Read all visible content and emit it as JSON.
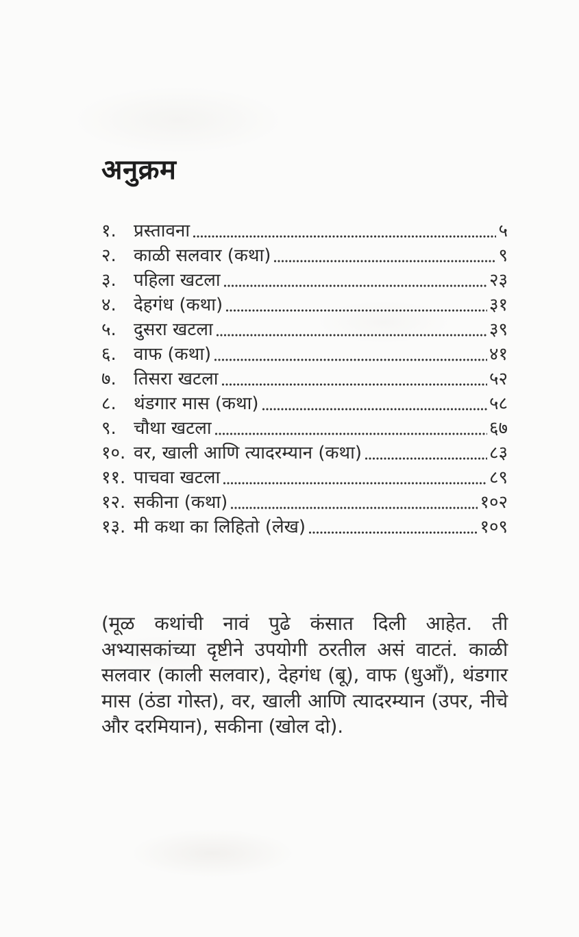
{
  "document": {
    "title": "अनुक्रम",
    "toc": {
      "entries": [
        {
          "num": "१.",
          "title": "प्रस्तावना",
          "page": "५"
        },
        {
          "num": "२.",
          "title": "काळी सलवार (कथा)",
          "page": "९"
        },
        {
          "num": "३.",
          "title": "पहिला खटला",
          "page": "२३"
        },
        {
          "num": "४.",
          "title": "देहगंध (कथा)",
          "page": "३१"
        },
        {
          "num": "५.",
          "title": "दुसरा खटला",
          "page": "३९"
        },
        {
          "num": "६.",
          "title": "वाफ (कथा)",
          "page": "४१"
        },
        {
          "num": "७.",
          "title": "तिसरा खटला",
          "page": "५२"
        },
        {
          "num": "८.",
          "title": "थंडगार मास (कथा)",
          "page": "५८"
        },
        {
          "num": "९.",
          "title": "चौथा खटला",
          "page": "६७"
        },
        {
          "num": "१०.",
          "title": "वर, खाली आणि त्यादरम्यान (कथा)",
          "page": "८३"
        },
        {
          "num": "११.",
          "title": "पाचवा खटला",
          "page": "८९"
        },
        {
          "num": "१२.",
          "title": "सकीना (कथा)",
          "page": "१०२"
        },
        {
          "num": "१३.",
          "title": "मी कथा का लिहितो (लेख)",
          "page": "१०९"
        }
      ]
    },
    "note": "(मूळ कथांची नावं पुढे कंसात दिली आहेत. ती अभ्यासकांच्या दृष्टीने उपयोगी ठरतील असं वाटतं. काळी सलवार (काली सलवार), देहगंध (बू), वाफ (धुआँ), थंडगार मास (ठंडा गोस्त), वर, खाली आणि त्यादरम्यान (उपर, नीचे और दरमियान), सकीना (खोल दो).",
    "colors": {
      "ink": "#262626",
      "paper": "#fbfbfa"
    }
  }
}
